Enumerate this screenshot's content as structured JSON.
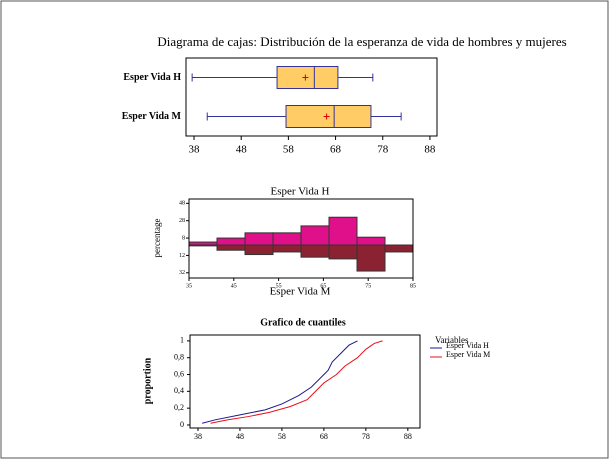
{
  "chart_data": [
    {
      "type": "box",
      "title": "Diagrama de cajas: Distribución de la esperanza de vida de hombres y mujeres",
      "categories": [
        "Esper Vida H",
        "Esper Vida M"
      ],
      "boxes": [
        {
          "min": 37.6,
          "q1": 55.6,
          "median": 63.5,
          "q3": 68.5,
          "max": 75.9,
          "mean": 61.6
        },
        {
          "min": 40.8,
          "q1": 57.5,
          "median": 67.7,
          "q3": 75.5,
          "max": 81.9,
          "mean": 66.1
        }
      ],
      "color": "#ffcc66",
      "line_color": "#333399",
      "mean_color": "#dd0000",
      "xlim": [
        36.3,
        89.5
      ],
      "xticks": [
        38,
        48,
        58,
        68,
        78,
        88
      ]
    },
    {
      "type": "histogram",
      "ylabel": "percentage",
      "bins": [
        35,
        41.25,
        47.5,
        53.75,
        60,
        66.25,
        72.5,
        78.75,
        85
      ],
      "series": [
        {
          "name": "Esper Vida H",
          "color": "#e0108a",
          "values": [
            3.4,
            8,
            14,
            14,
            22,
            32,
            9,
            0
          ]
        },
        {
          "name": "Esper Vida M",
          "color": "#8b2232",
          "values": [
            -1,
            -6,
            -11,
            -8,
            -14,
            -16,
            -30,
            -8
          ]
        }
      ],
      "xlim": [
        35,
        85
      ],
      "xticks": [
        35,
        45,
        55,
        65,
        75,
        85
      ],
      "ylim": [
        -38,
        53
      ],
      "yticks": [
        {
          "value": 48,
          "label": "48"
        },
        {
          "value": 28,
          "label": "28"
        },
        {
          "value": 8,
          "label": "8"
        },
        {
          "value": -12,
          "label": "12"
        },
        {
          "value": -32,
          "label": "32"
        }
      ]
    },
    {
      "type": "line",
      "title": "Grafico de cuantiles",
      "ylabel": "proportion",
      "legend_title": "Variables",
      "series": [
        {
          "name": "Esper Vida H",
          "color": "#1a1a8c",
          "x": [
            39,
            42,
            48,
            54,
            58,
            62,
            65,
            67,
            69,
            70,
            72,
            74,
            76
          ],
          "values": [
            0.02,
            0.06,
            0.12,
            0.18,
            0.25,
            0.35,
            0.45,
            0.55,
            0.65,
            0.75,
            0.85,
            0.95,
            1
          ]
        },
        {
          "name": "Esper Vida M",
          "color": "#e8101a",
          "x": [
            41,
            45,
            50,
            55,
            60,
            64,
            66,
            68,
            71,
            73,
            76,
            78,
            80,
            82
          ],
          "values": [
            0.02,
            0.06,
            0.1,
            0.15,
            0.22,
            0.3,
            0.4,
            0.5,
            0.6,
            0.7,
            0.8,
            0.9,
            0.97,
            1
          ]
        }
      ],
      "xlim": [
        36.1,
        90.9
      ],
      "xticks": [
        38,
        48,
        58,
        68,
        78,
        88
      ],
      "ylim": [
        -0.036,
        1.07
      ],
      "yticks": [
        0,
        {
          "value": 0.2,
          "label": "0,2"
        },
        {
          "value": 0.4,
          "label": "0,4"
        },
        {
          "value": 0.6,
          "label": "0,6"
        },
        {
          "value": 0.8,
          "label": "0,8"
        },
        1
      ]
    }
  ]
}
